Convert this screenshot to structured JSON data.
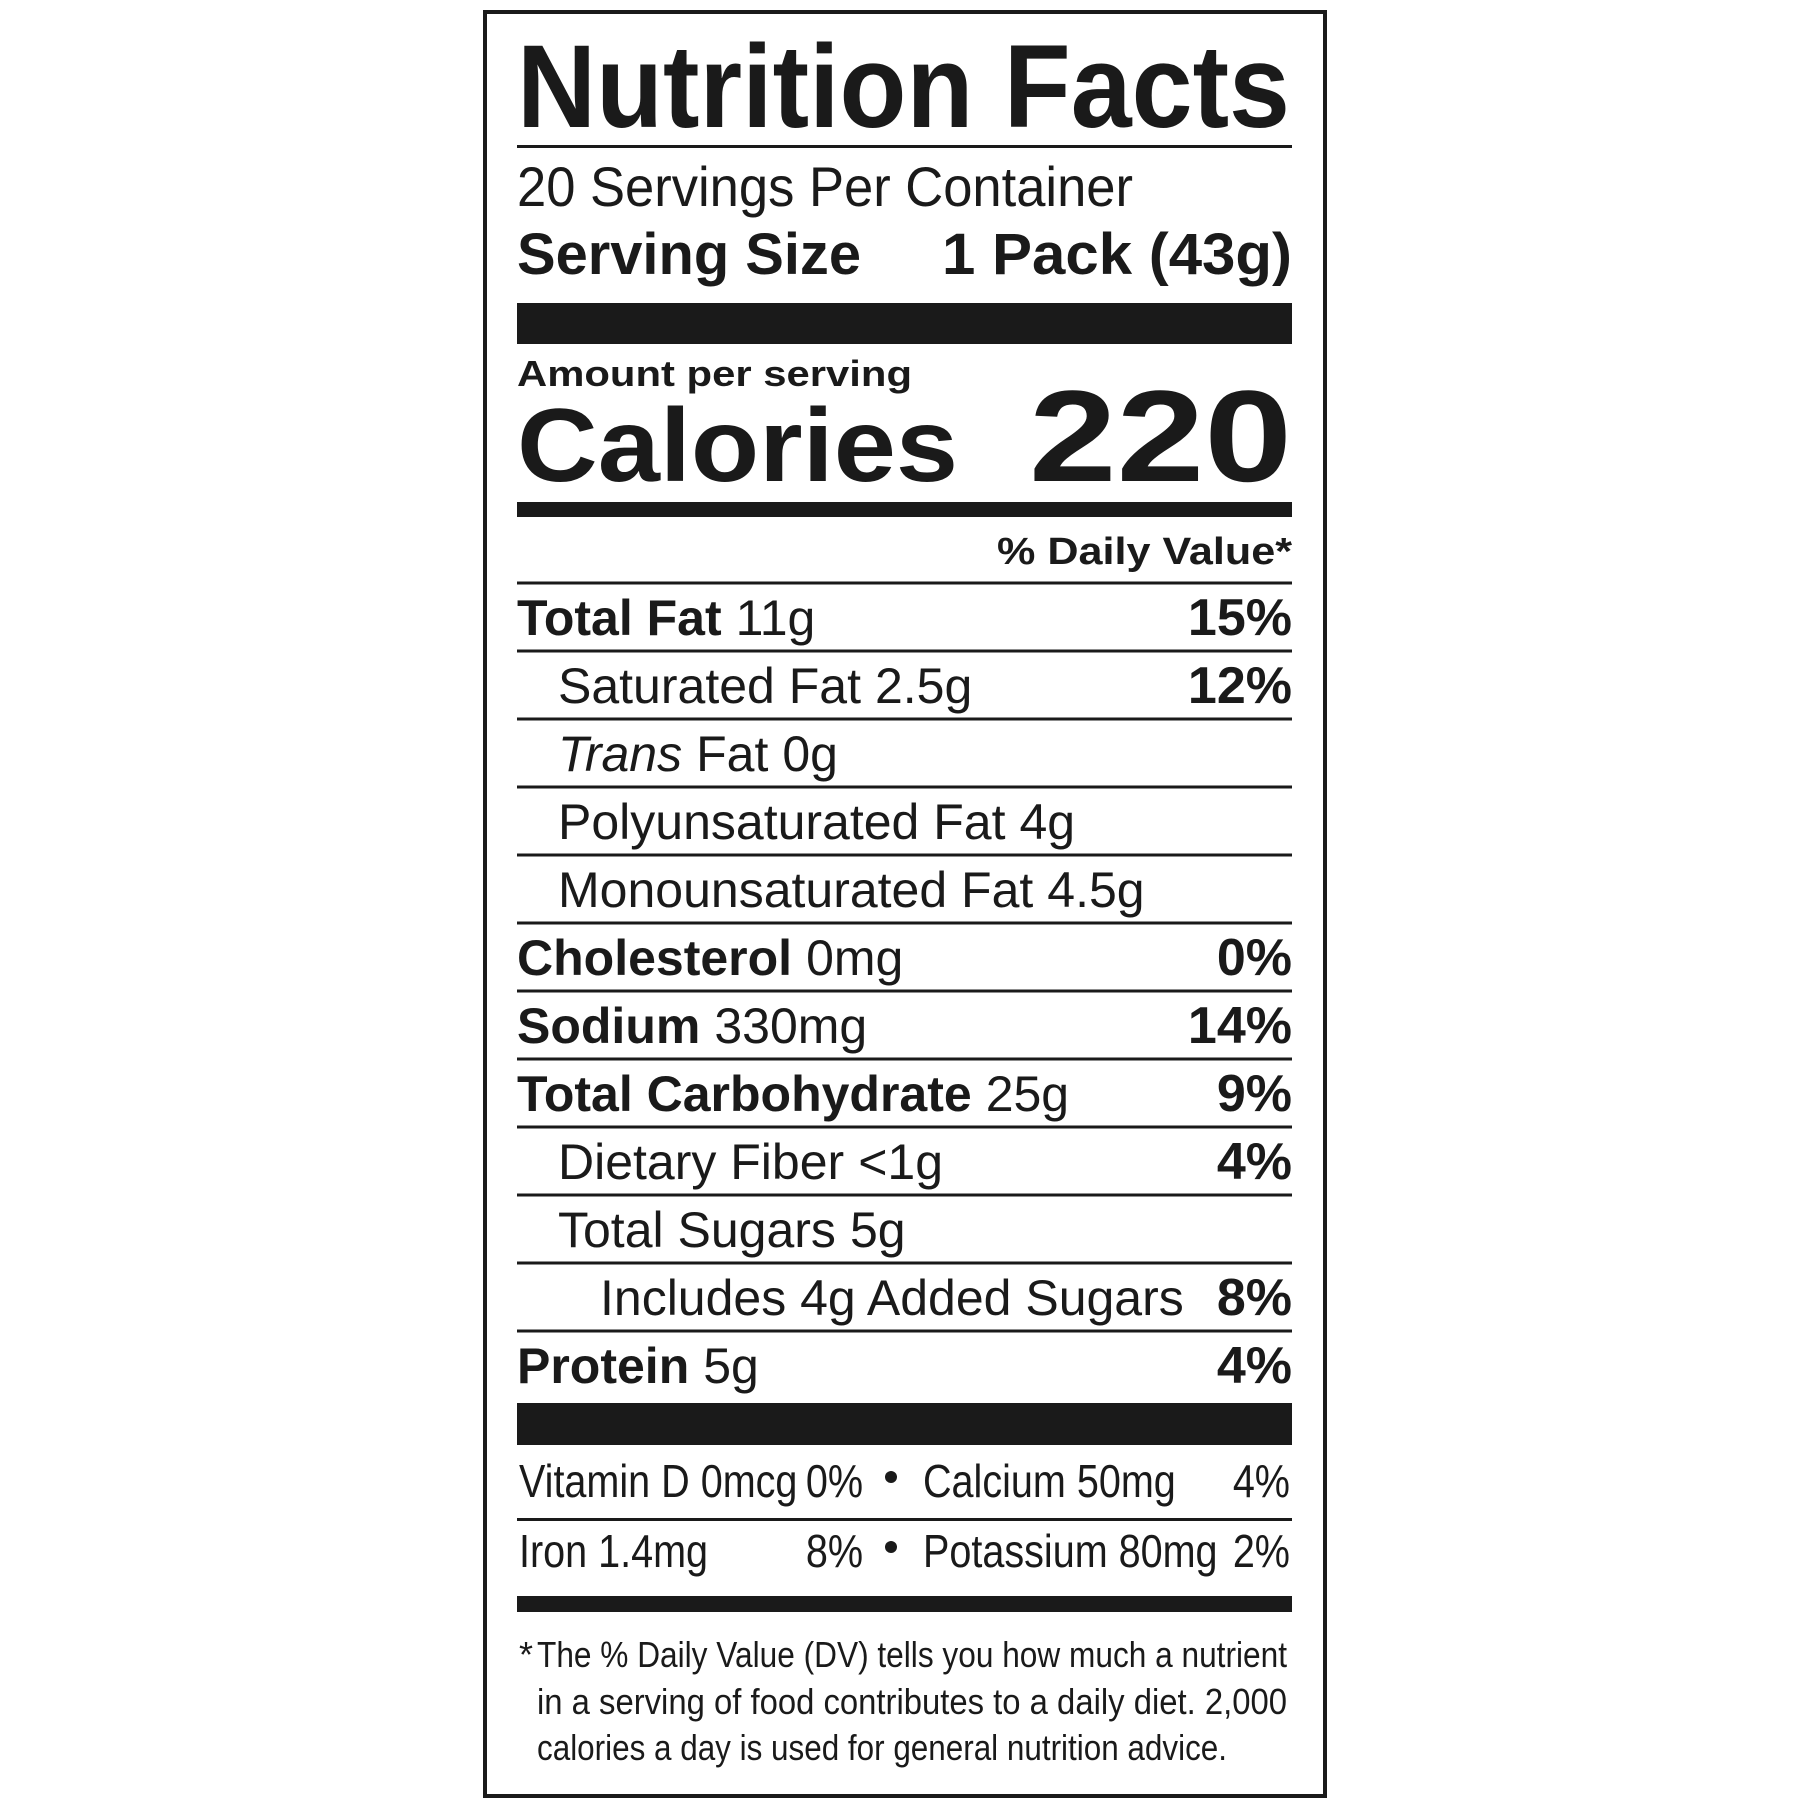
{
  "header": {
    "title": "Nutrition Facts",
    "servings_per_container": "20 Servings Per Container",
    "serving_size_label": "Serving Size",
    "serving_size_value": "1 Pack (43g)"
  },
  "calories": {
    "amount_per_serving": "Amount per serving",
    "label": "Calories",
    "value": "220"
  },
  "daily_value_header": "% Daily Value*",
  "nutrients": [
    {
      "name": "Total Fat",
      "amount": "11g",
      "dv": "15%"
    },
    {
      "name": "Saturated Fat",
      "amount": "2.5g",
      "dv": "12%"
    },
    {
      "name_italic": "Trans",
      "name": "Fat",
      "amount": "0g"
    },
    {
      "name": "Polyunsaturated Fat",
      "amount": "4g"
    },
    {
      "name": "Monounsaturated Fat",
      "amount": "4.5g"
    },
    {
      "name": "Cholesterol",
      "amount": "0mg",
      "dv": "0%"
    },
    {
      "name": "Sodium",
      "amount": "330mg",
      "dv": "14%"
    },
    {
      "name": "Total Carbohydrate",
      "amount": "25g",
      "dv": "9%"
    },
    {
      "name": "Dietary Fiber",
      "amount": "<1g",
      "dv": "4%"
    },
    {
      "name": "Total Sugars",
      "amount": "5g"
    },
    {
      "name": "Includes 4g Added Sugars",
      "dv": "8%"
    },
    {
      "name": "Protein",
      "amount": "5g",
      "dv": "4%"
    }
  ],
  "micronutrients": [
    [
      {
        "name": "Vitamin D 0mcg",
        "dv": "0%"
      },
      {
        "name": "Calcium 50mg",
        "dv": "4%"
      }
    ],
    [
      {
        "name": "Iron 1.4mg",
        "dv": "8%"
      },
      {
        "name": "Potassium 80mg",
        "dv": "2%"
      }
    ]
  ],
  "footnote": {
    "asterisk": "*",
    "lines": [
      "The % Daily Value (DV) tells you how much a nutrient",
      "in a serving of food contributes to a daily diet. 2,000",
      "calories a day is used for general nutrition advice."
    ]
  }
}
